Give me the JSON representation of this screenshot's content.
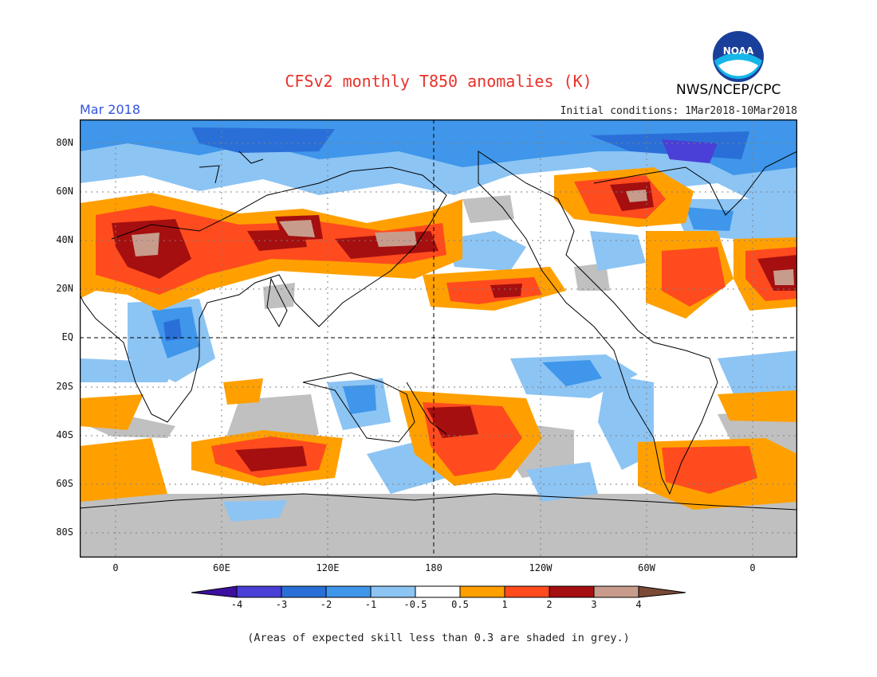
{
  "header": {
    "title": "CFSv2 monthly T850 anomalies (K)",
    "agency": "NWS/NCEP/CPC",
    "logo_text": "NOAA",
    "month": "Mar 2018",
    "initial_conditions": "Initial conditions: 1Mar2018-10Mar2018"
  },
  "axes": {
    "lat_labels": [
      "80N",
      "60N",
      "40N",
      "20N",
      "EQ",
      "20S",
      "40S",
      "60S",
      "80S"
    ],
    "lon_labels": [
      "0",
      "60E",
      "120E",
      "180",
      "120W",
      "60W",
      "0"
    ]
  },
  "legend": {
    "labels": [
      "-4",
      "-3",
      "-2",
      "-1",
      "-0.5",
      "0.5",
      "1",
      "2",
      "3",
      "4"
    ],
    "colors": [
      "#3c0fa0",
      "#4a3fd6",
      "#2a6fd8",
      "#3f96ea",
      "#8cc4f4",
      "#ffffff",
      "#ffa000",
      "#ff4b1e",
      "#a50f0f",
      "#c89c8c",
      "#7a4a36"
    ],
    "skill_mask_color": "#c0c0c0"
  },
  "footnote": "(Areas of expected skill less than 0.3 are shaded in grey.)"
}
